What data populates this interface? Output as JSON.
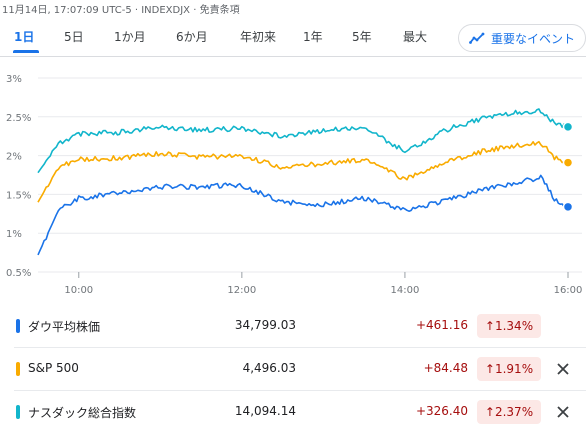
{
  "header": {
    "info": "11月14日, 17:07:09 UTC-5 · INDEXDJX · 免責条項"
  },
  "tabs": [
    {
      "label": "1日",
      "active": true
    },
    {
      "label": "5日"
    },
    {
      "label": "1か月"
    },
    {
      "label": "6か月"
    },
    {
      "label": "年初来"
    },
    {
      "label": "1年"
    },
    {
      "label": "5年"
    },
    {
      "label": "最大"
    }
  ],
  "events_button": {
    "label": "重要なイベント",
    "icon": "trend-icon"
  },
  "chart_data": {
    "type": "line",
    "x_ticks": [
      "10:00",
      "12:00",
      "14:00",
      "16:00"
    ],
    "y_ticks": [
      "3%",
      "2.5%",
      "2%",
      "1.5%",
      "1%",
      "0.5%"
    ],
    "ylim": [
      0.5,
      3.0
    ],
    "x_range": [
      "09:30",
      "16:00"
    ],
    "grid": true,
    "series": [
      {
        "name": "ナスダック総合指数",
        "color": "#12b5cb",
        "x": [
          "09:30",
          "09:45",
          "10:00",
          "10:30",
          "11:00",
          "11:30",
          "12:00",
          "12:30",
          "13:00",
          "13:30",
          "14:00",
          "14:30",
          "15:00",
          "15:20",
          "15:40",
          "15:50",
          "16:00"
        ],
        "y": [
          1.78,
          2.15,
          2.28,
          2.3,
          2.37,
          2.33,
          2.35,
          2.25,
          2.32,
          2.37,
          2.05,
          2.33,
          2.5,
          2.55,
          2.58,
          2.42,
          2.37
        ]
      },
      {
        "name": "S&P 500",
        "color": "#f9ab00",
        "x": [
          "09:30",
          "09:45",
          "10:00",
          "10:30",
          "11:00",
          "11:30",
          "12:00",
          "12:30",
          "13:00",
          "13:30",
          "14:00",
          "14:30",
          "15:00",
          "15:20",
          "15:40",
          "15:50",
          "16:00"
        ],
        "y": [
          1.4,
          1.85,
          1.95,
          1.97,
          2.03,
          1.98,
          2.0,
          1.85,
          1.9,
          1.95,
          1.7,
          1.92,
          2.07,
          2.12,
          2.17,
          1.98,
          1.91
        ]
      },
      {
        "name": "ダウ平均株価",
        "color": "#1a73e8",
        "x": [
          "09:30",
          "09:45",
          "10:00",
          "10:30",
          "11:00",
          "11:30",
          "12:00",
          "12:30",
          "13:00",
          "13:30",
          "14:00",
          "14:30",
          "15:00",
          "15:20",
          "15:40",
          "15:50",
          "16:00"
        ],
        "y": [
          0.72,
          1.3,
          1.45,
          1.52,
          1.6,
          1.6,
          1.62,
          1.4,
          1.37,
          1.45,
          1.3,
          1.42,
          1.57,
          1.65,
          1.72,
          1.45,
          1.34
        ]
      }
    ]
  },
  "rows": [
    {
      "name": "ダウ平均株価",
      "color": "#1a73e8",
      "price": "34,799.03",
      "change": "+461.16",
      "pct": "1.34%",
      "closable": false
    },
    {
      "name": "S&P 500",
      "color": "#f9ab00",
      "price": "4,496.03",
      "change": "+84.48",
      "pct": "1.91%",
      "closable": true
    },
    {
      "name": "ナスダック総合指数",
      "color": "#12b5cb",
      "price": "14,094.14",
      "change": "+326.40",
      "pct": "2.37%",
      "closable": true
    }
  ]
}
